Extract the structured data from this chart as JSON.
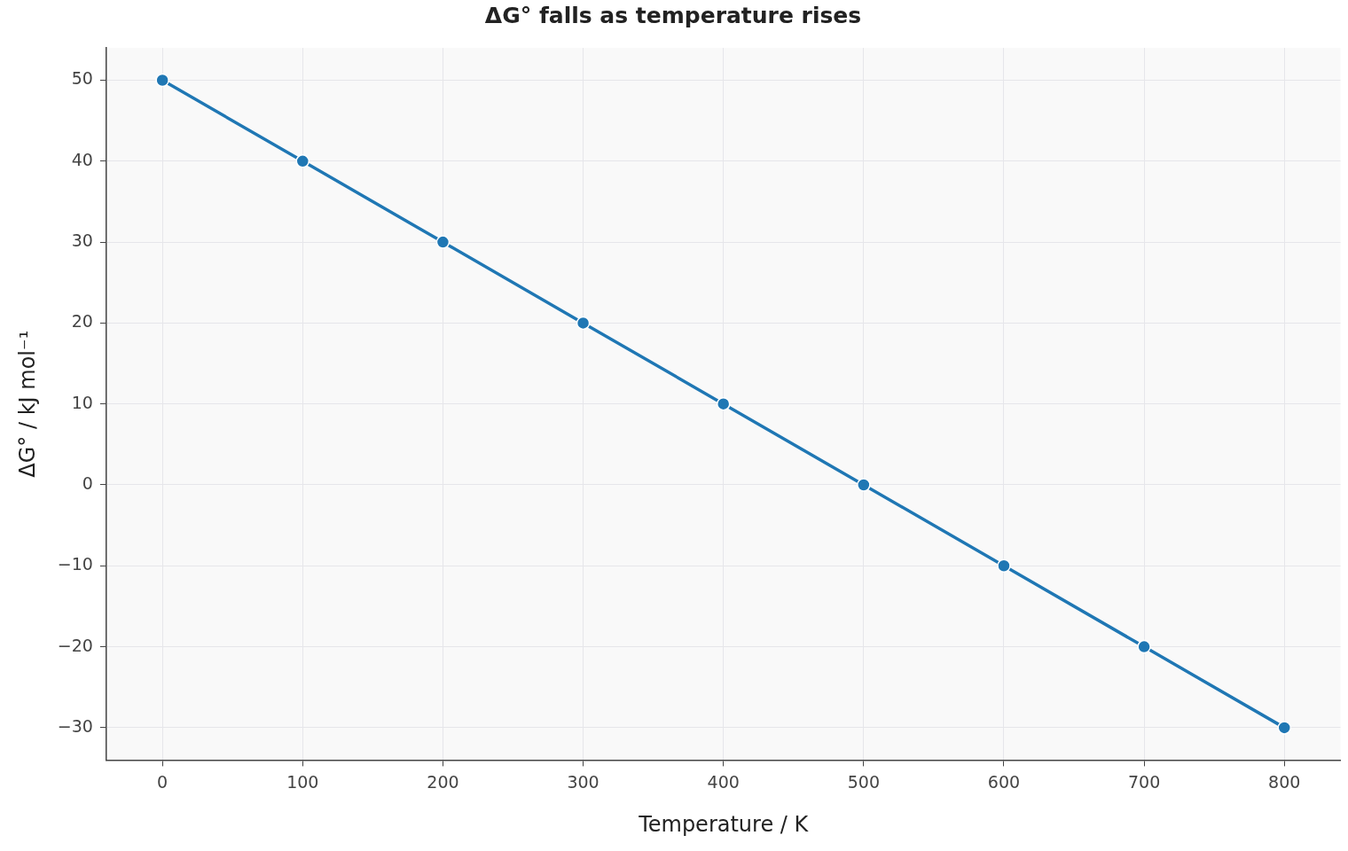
{
  "chart_data": {
    "type": "line",
    "title": "ΔG° falls as temperature rises",
    "xlabel": "Temperature / K",
    "ylabel": "ΔG° / kJ mol⁻¹",
    "x": [
      0,
      100,
      200,
      300,
      400,
      500,
      600,
      700,
      800
    ],
    "series": [
      {
        "color": "#1f77b4",
        "values": [
          50,
          40,
          30,
          20,
          10,
          0,
          -10,
          -20,
          -30
        ]
      }
    ],
    "xlim": [
      -40,
      840
    ],
    "xticks": [
      0,
      100,
      200,
      300,
      400,
      500,
      600,
      700,
      800
    ],
    "ylim": [
      -34,
      54
    ],
    "yticks": [
      {
        "value": -30,
        "label": "−30"
      },
      {
        "value": -20,
        "label": "−20"
      },
      {
        "value": -10,
        "label": "−10"
      },
      0,
      10,
      20,
      30,
      40,
      50
    ],
    "grid": true,
    "legend": false,
    "marker": "circle",
    "line_style": "solid"
  }
}
